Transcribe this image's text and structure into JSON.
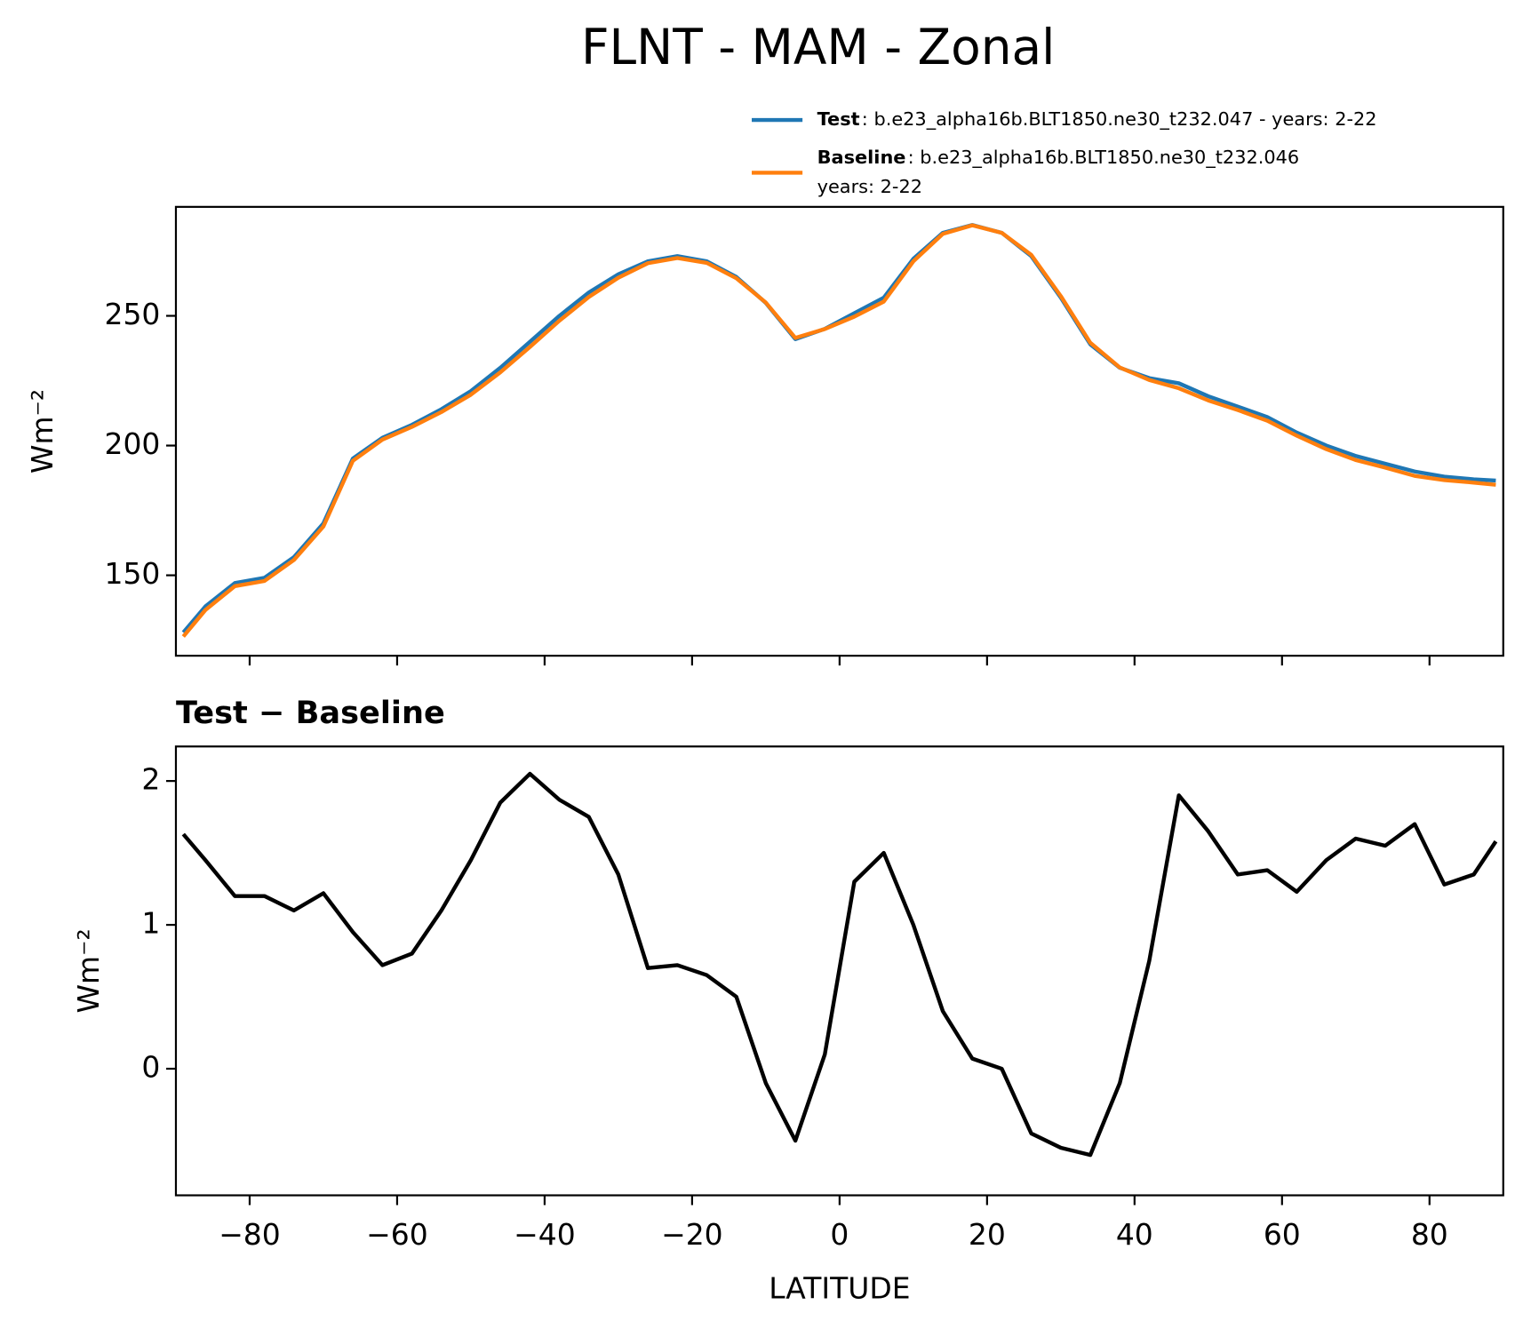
{
  "title": "FLNT - MAM - Zonal",
  "chart_data": [
    {
      "type": "line",
      "x": [
        -89,
        -86,
        -82,
        -78,
        -74,
        -70,
        -66,
        -62,
        -58,
        -54,
        -50,
        -46,
        -42,
        -38,
        -34,
        -30,
        -26,
        -22,
        -18,
        -14,
        -10,
        -6,
        -2,
        2,
        6,
        10,
        14,
        18,
        22,
        26,
        30,
        34,
        38,
        42,
        46,
        50,
        54,
        58,
        62,
        66,
        70,
        74,
        78,
        82,
        86,
        89
      ],
      "series": [
        {
          "name": "Test",
          "legend_text": [
            ": b.e23_alpha16b.BLT1850.ne30_t232.047 - years: 2-22"
          ],
          "color": "#1f77b4",
          "values": [
            128,
            138,
            147,
            149,
            157,
            170,
            195,
            203,
            208,
            214,
            221,
            230,
            240,
            250,
            259,
            266,
            271,
            273,
            271,
            265,
            255,
            241,
            245,
            251,
            257,
            272,
            282,
            285,
            282,
            273,
            257,
            239,
            230,
            226,
            224,
            219,
            215,
            211,
            205,
            200,
            196,
            193,
            190,
            188,
            187,
            186.5
          ]
        },
        {
          "name": "Baseline",
          "legend_text": [
            ": b.e23_alpha16b.BLT1850.ne30_t232.046",
            "years: 2-22"
          ],
          "color": "#ff7f0e",
          "values": [
            126.4,
            136.6,
            145.8,
            147.8,
            155.9,
            168.8,
            194.1,
            202.3,
            207.2,
            212.9,
            219.6,
            228.2,
            238.0,
            248.1,
            257.3,
            264.7,
            270.3,
            272.3,
            270.4,
            264.5,
            255.1,
            241.5,
            244.9,
            249.7,
            255.5,
            271,
            281.6,
            284.9,
            282,
            273.5,
            257.6,
            239.6,
            230.1,
            225.3,
            222.1,
            217.4,
            213.7,
            209.6,
            203.8,
            198.6,
            194.4,
            191.5,
            188.3,
            186.7,
            185.7,
            184.9
          ]
        }
      ],
      "ylabel": "Wm⁻²",
      "xlim": [
        -90,
        90
      ],
      "xticks": [
        -80,
        -60,
        -40,
        -20,
        0,
        20,
        40,
        60,
        80
      ],
      "xticklabels": false,
      "ylim": [
        119,
        292
      ],
      "yticks": [
        150,
        200,
        250
      ]
    },
    {
      "type": "line",
      "title": "Test − Baseline",
      "x": [
        -89,
        -86,
        -82,
        -78,
        -74,
        -70,
        -66,
        -62,
        -58,
        -54,
        -50,
        -46,
        -42,
        -38,
        -34,
        -30,
        -26,
        -22,
        -18,
        -14,
        -10,
        -6,
        -2,
        2,
        6,
        10,
        14,
        18,
        22,
        26,
        30,
        34,
        38,
        42,
        46,
        50,
        54,
        58,
        62,
        66,
        70,
        74,
        78,
        82,
        86,
        89
      ],
      "series": [
        {
          "color": "#000000",
          "values": [
            1.63,
            1.45,
            1.2,
            1.2,
            1.1,
            1.22,
            0.95,
            0.72,
            0.8,
            1.1,
            1.45,
            1.85,
            2.05,
            1.87,
            1.75,
            1.35,
            0.7,
            0.72,
            0.65,
            0.5,
            -0.1,
            -0.5,
            0.1,
            1.3,
            1.5,
            1.0,
            0.4,
            0.07,
            0.0,
            -0.45,
            -0.55,
            -0.6,
            -0.1,
            0.75,
            1.9,
            1.65,
            1.35,
            1.38,
            1.23,
            1.45,
            1.6,
            1.55,
            1.7,
            1.28,
            1.35,
            1.58
          ]
        }
      ],
      "ylabel": "Wm⁻²",
      "xlabel": "LATITUDE",
      "xlim": [
        -90,
        90
      ],
      "xticks": [
        {
          "value": -80,
          "label": "−80"
        },
        {
          "value": -60,
          "label": "−60"
        },
        {
          "value": -40,
          "label": "−40"
        },
        {
          "value": -20,
          "label": "−20"
        },
        0,
        20,
        40,
        60,
        80
      ],
      "ylim": [
        -0.88,
        2.24
      ],
      "yticks": [
        0,
        1,
        2
      ]
    }
  ]
}
